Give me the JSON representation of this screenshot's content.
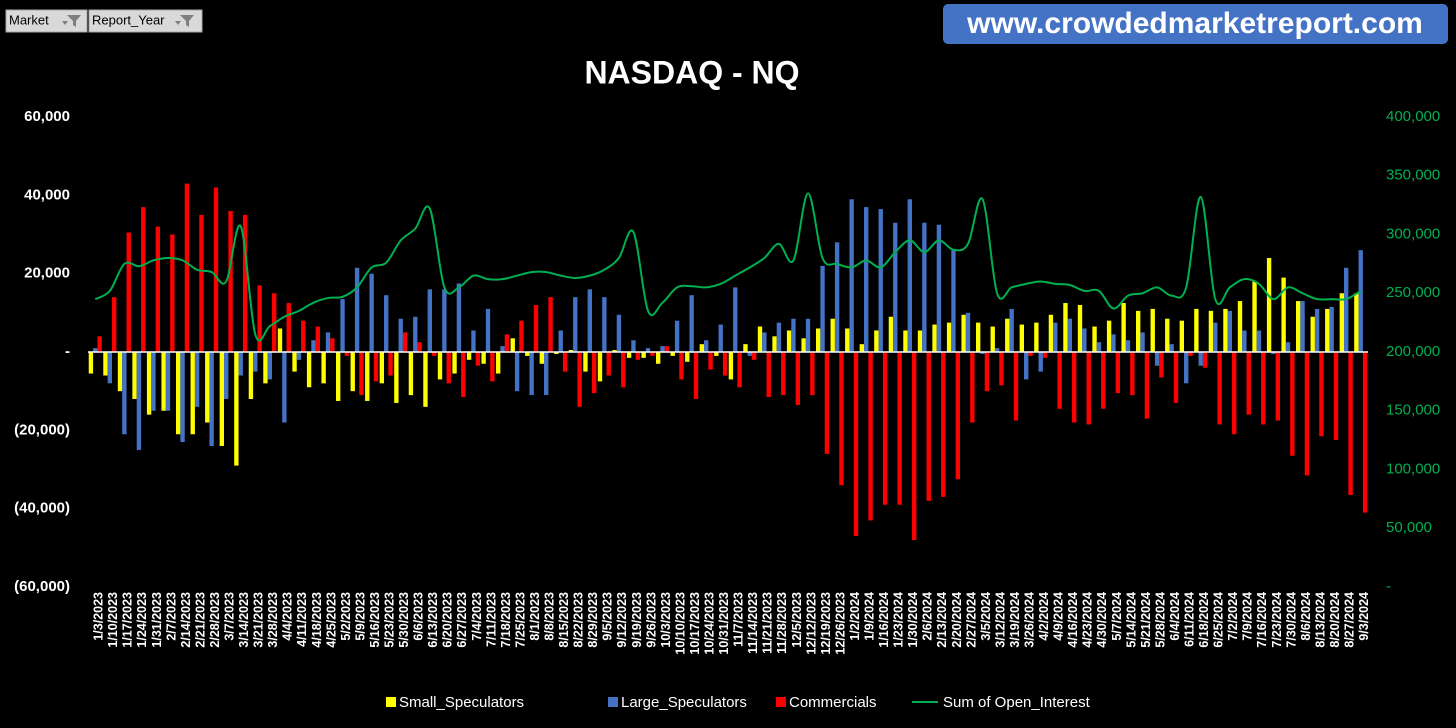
{
  "filters": [
    "Market",
    "Report_Year"
  ],
  "banner": "www.crowdedmarketreport.com",
  "chart_data": {
    "type": "bar",
    "title": "NASDAQ - NQ",
    "categories": [
      "1/3/2023",
      "1/10/2023",
      "1/17/2023",
      "1/24/2023",
      "1/31/2023",
      "2/7/2023",
      "2/14/2023",
      "2/21/2023",
      "2/28/2023",
      "3/7/2023",
      "3/14/2023",
      "3/21/2023",
      "3/28/2023",
      "4/4/2023",
      "4/11/2023",
      "4/18/2023",
      "4/25/2023",
      "5/2/2023",
      "5/9/2023",
      "5/16/2023",
      "5/23/2023",
      "5/30/2023",
      "6/6/2023",
      "6/13/2023",
      "6/20/2023",
      "6/27/2023",
      "7/4/2023",
      "7/11/2023",
      "7/18/2023",
      "7/25/2023",
      "8/1/2023",
      "8/8/2023",
      "8/15/2023",
      "8/22/2023",
      "8/29/2023",
      "9/5/2023",
      "9/12/2023",
      "9/19/2023",
      "9/26/2023",
      "10/3/2023",
      "10/10/2023",
      "10/17/2023",
      "10/24/2023",
      "10/31/2023",
      "11/7/2023",
      "11/14/2023",
      "11/21/2023",
      "11/28/2023",
      "12/5/2023",
      "12/12/2023",
      "12/19/2023",
      "12/26/2023",
      "1/2/2024",
      "1/9/2024",
      "1/16/2024",
      "1/23/2024",
      "1/30/2024",
      "2/6/2024",
      "2/13/2024",
      "2/20/2024",
      "2/27/2024",
      "3/5/2024",
      "3/12/2024",
      "3/19/2024",
      "3/26/2024",
      "4/2/2024",
      "4/9/2024",
      "4/16/2024",
      "4/23/2024",
      "4/30/2024",
      "5/7/2024",
      "5/14/2024",
      "5/21/2024",
      "5/28/2024",
      "6/4/2024",
      "6/11/2024",
      "6/18/2024",
      "6/25/2024",
      "7/2/2024",
      "7/9/2024",
      "7/16/2024",
      "7/23/2024",
      "7/30/2024",
      "8/6/2024",
      "8/13/2024",
      "8/20/2024",
      "8/27/2024",
      "9/3/2024"
    ],
    "series": [
      {
        "name": "Small_Speculators",
        "type": "bar",
        "color": "#ffff00",
        "values": [
          -5500,
          -6000,
          -10000,
          -12000,
          -16000,
          -15000,
          -21000,
          -21000,
          -18000,
          -24000,
          -29000,
          -12000,
          -8000,
          6000,
          -5000,
          -9000,
          -8000,
          -12500,
          -10000,
          -12500,
          -8000,
          -13000,
          -11000,
          -14000,
          -7000,
          -5500,
          -2000,
          -3000,
          -5500,
          3500,
          -1000,
          -3000,
          -500,
          500,
          -5000,
          -7500,
          500,
          -1500,
          -1500,
          -3000,
          -1000,
          -2500,
          2000,
          -1000,
          -7000,
          2000,
          6500,
          4000,
          5500,
          3500,
          6000,
          8500,
          6000,
          2000,
          5500,
          9000,
          5500,
          5500,
          7000,
          7500,
          9500,
          7500,
          6500,
          8500,
          7000,
          7500,
          9500,
          12500,
          12000,
          6500,
          8000,
          12500,
          10500,
          11000,
          8500,
          8000,
          11000,
          10500,
          11000,
          13000,
          18000,
          24000,
          19000,
          13000,
          9000,
          11000,
          15000,
          15000
        ]
      },
      {
        "name": "Large_Speculators",
        "type": "bar",
        "color": "#4472c4",
        "values": [
          1000,
          -8000,
          -21000,
          -25000,
          -15000,
          -15000,
          -23000,
          -14000,
          -24000,
          -12000,
          -6000,
          -5000,
          -7000,
          -18000,
          -2000,
          3000,
          5000,
          13500,
          21500,
          20000,
          14500,
          8500,
          9000,
          16000,
          16000,
          17500,
          5500,
          11000,
          1500,
          -10000,
          -11000,
          -11000,
          5500,
          14000,
          16000,
          14000,
          9500,
          3000,
          1000,
          1500,
          8000,
          14500,
          3000,
          7000,
          16500,
          -1000,
          5000,
          7500,
          8500,
          8500,
          22000,
          28000,
          39000,
          37000,
          36500,
          33000,
          39000,
          33000,
          32500,
          26000,
          10000,
          -500,
          1000,
          11000,
          -7000,
          -5000,
          7500,
          8500,
          6000,
          2500,
          4500,
          3000,
          5000,
          -3500,
          2000,
          -8000,
          -3500,
          7500,
          10500,
          5500,
          5500,
          -500,
          2500,
          13000,
          11000,
          11500,
          21500,
          26000
        ]
      },
      {
        "name": "Commercials",
        "type": "bar",
        "color": "#ff0000",
        "values": [
          4000,
          14000,
          30500,
          37000,
          32000,
          30000,
          43000,
          35000,
          42000,
          36000,
          35000,
          17000,
          15000,
          12500,
          8000,
          6500,
          3500,
          -1000,
          -11000,
          -7500,
          -6000,
          5000,
          2500,
          -1000,
          -8000,
          -11500,
          -3500,
          -7500,
          4500,
          8000,
          12000,
          14000,
          -5000,
          -14000,
          -10500,
          -6000,
          -9000,
          -2000,
          -1000,
          1500,
          -7000,
          -12000,
          -4500,
          -6000,
          -9000,
          -2000,
          -11500,
          -11000,
          -13500,
          -11000,
          -26000,
          -34000,
          -47000,
          -43000,
          -39000,
          -39000,
          -48000,
          -38000,
          -37000,
          -32500,
          -18000,
          -10000,
          -8500,
          -17500,
          -1000,
          -1500,
          -14500,
          -18000,
          -18500,
          -14500,
          -10500,
          -11000,
          -17000,
          -6500,
          -13000,
          -1000,
          -4000,
          -18500,
          -21000,
          -16000,
          -18500,
          -17500,
          -26500,
          -31500,
          -21500,
          -22500,
          -36500,
          -41000
        ]
      },
      {
        "name": "Sum of Open_Interest",
        "type": "line",
        "axis": "y2",
        "color": "#00b050",
        "values": [
          245000,
          252000,
          275000,
          273000,
          278000,
          280000,
          278000,
          270000,
          268000,
          260000,
          307000,
          215000,
          222000,
          230000,
          235000,
          242000,
          246000,
          247000,
          255000,
          272000,
          276000,
          295000,
          305000,
          322000,
          255000,
          255000,
          265000,
          262000,
          262000,
          265000,
          268000,
          268000,
          265000,
          263000,
          265000,
          270000,
          280000,
          302000,
          235000,
          242000,
          255000,
          256000,
          255000,
          258000,
          265000,
          272000,
          280000,
          292000,
          278000,
          335000,
          280000,
          275000,
          272000,
          278000,
          272000,
          285000,
          295000,
          285000,
          295000,
          287000,
          292000,
          330000,
          250000,
          255000,
          258000,
          260000,
          258000,
          257000,
          252000,
          252000,
          237000,
          248000,
          250000,
          255000,
          248000,
          255000,
          332000,
          245000,
          255000,
          262000,
          258000,
          245000,
          255000,
          250000,
          245000,
          245000,
          245000,
          252000
        ]
      }
    ],
    "ylim": [
      -60000,
      60000
    ],
    "yticks": [
      {
        "value": -60000,
        "label": "(60,000)"
      },
      {
        "value": -40000,
        "label": "(40,000)"
      },
      {
        "value": -20000,
        "label": "(20,000)"
      },
      {
        "value": 0,
        "label": "-"
      },
      {
        "value": 20000,
        "label": "20,000"
      },
      {
        "value": 40000,
        "label": "40,000"
      },
      {
        "value": 60000,
        "label": "60,000"
      }
    ],
    "y2lim": [
      0,
      400000
    ],
    "y2ticks": [
      {
        "value": 0,
        "label": "-"
      },
      {
        "value": 50000,
        "label": "50,000"
      },
      {
        "value": 100000,
        "label": "100,000"
      },
      {
        "value": 150000,
        "label": "150,000"
      },
      {
        "value": 200000,
        "label": "200,000"
      },
      {
        "value": 250000,
        "label": "250,000"
      },
      {
        "value": 300000,
        "label": "300,000"
      },
      {
        "value": 350000,
        "label": "350,000"
      },
      {
        "value": 400000,
        "label": "400,000"
      }
    ],
    "legend": "bottom",
    "grid": false
  }
}
